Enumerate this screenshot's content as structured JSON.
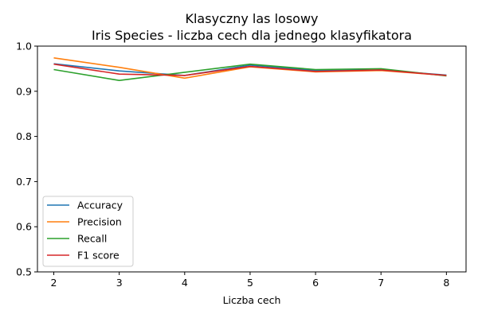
{
  "chart_data": {
    "type": "line",
    "title": "Klasyczny las losowy",
    "subtitle": "Iris Species - liczba cech dla jednego klasyfikatora",
    "xlabel": "Liczba cech",
    "ylabel": "",
    "x": [
      2,
      3,
      4,
      5,
      6,
      7,
      8
    ],
    "xlim": [
      1.75,
      8.3
    ],
    "ylim": [
      0.5,
      1.0
    ],
    "xticks": [
      "2",
      "3",
      "4",
      "5",
      "6",
      "7",
      "8"
    ],
    "yticks": [
      "0.5",
      "0.6",
      "0.7",
      "0.8",
      "0.9",
      "1.0"
    ],
    "grid": false,
    "legend_position": "lower-left",
    "series": [
      {
        "name": "Accuracy",
        "color": "#1f77b4",
        "values": [
          0.961,
          0.945,
          0.935,
          0.958,
          0.946,
          0.947,
          0.936
        ]
      },
      {
        "name": "Precision",
        "color": "#ff7f0e",
        "values": [
          0.974,
          0.953,
          0.929,
          0.954,
          0.943,
          0.946,
          0.935
        ]
      },
      {
        "name": "Recall",
        "color": "#2ca02c",
        "values": [
          0.948,
          0.924,
          0.942,
          0.96,
          0.948,
          0.95,
          0.934
        ]
      },
      {
        "name": "F1 score",
        "color": "#d62728",
        "values": [
          0.96,
          0.938,
          0.935,
          0.955,
          0.944,
          0.947,
          0.935
        ]
      }
    ]
  }
}
